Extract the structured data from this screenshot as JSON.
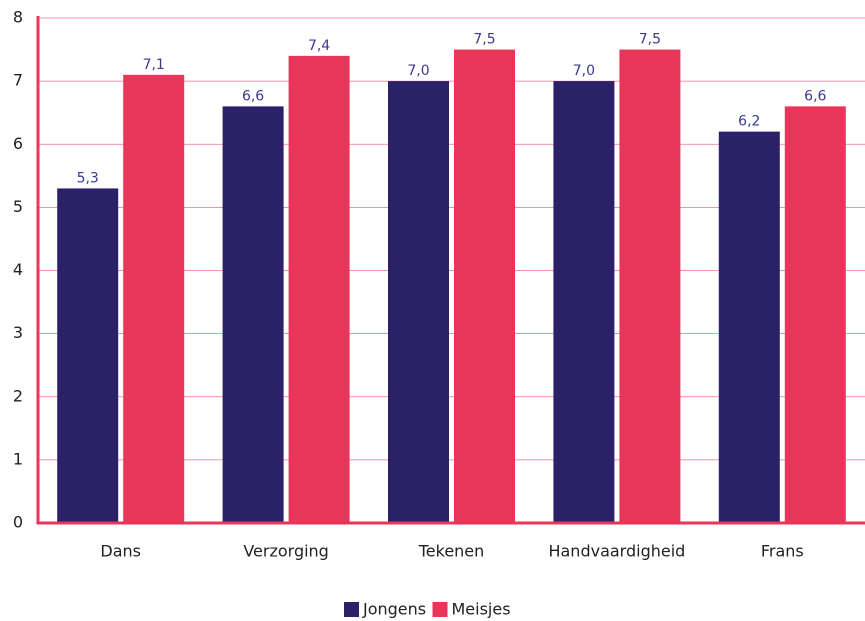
{
  "chart_data": {
    "type": "bar",
    "categories": [
      "Dans",
      "Verzorging",
      "Tekenen",
      "Handvaardigheid",
      "Frans"
    ],
    "series": [
      {
        "name": "Jongens",
        "color": "#2b2169",
        "values": [
          5.3,
          6.6,
          7.0,
          7.0,
          6.2
        ],
        "value_labels": [
          "5,3",
          "6,6",
          "7,0",
          "7,0",
          "6,2"
        ]
      },
      {
        "name": "Meisjes",
        "color": "#e8365a",
        "values": [
          7.1,
          7.4,
          7.5,
          7.5,
          6.6
        ],
        "value_labels": [
          "7,1",
          "7,4",
          "7,5",
          "7,5",
          "6,6"
        ]
      }
    ],
    "ylim": [
      0,
      8
    ],
    "yticks": [
      0,
      1,
      2,
      3,
      4,
      5,
      6,
      7,
      8
    ],
    "grid": true,
    "legend": "bottom"
  }
}
